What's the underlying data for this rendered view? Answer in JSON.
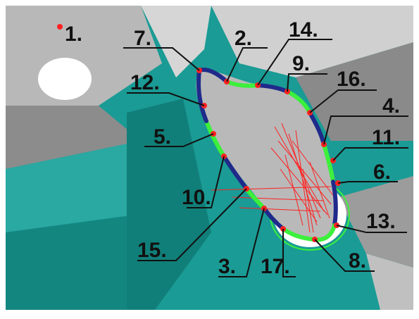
{
  "labels": [
    {
      "id": "1",
      "text": "1."
    },
    {
      "id": "2",
      "text": "2."
    },
    {
      "id": "3",
      "text": "3."
    },
    {
      "id": "4",
      "text": "4."
    },
    {
      "id": "5",
      "text": "5."
    },
    {
      "id": "6",
      "text": "6."
    },
    {
      "id": "7",
      "text": "7."
    },
    {
      "id": "8",
      "text": "8."
    },
    {
      "id": "9",
      "text": "9."
    },
    {
      "id": "10",
      "text": "10."
    },
    {
      "id": "11",
      "text": "11."
    },
    {
      "id": "12",
      "text": "12."
    },
    {
      "id": "13",
      "text": "13."
    },
    {
      "id": "14",
      "text": "14."
    },
    {
      "id": "15",
      "text": "15."
    },
    {
      "id": "16",
      "text": "16."
    },
    {
      "id": "17",
      "text": "17."
    }
  ],
  "colors": {
    "teal": "#1a9b95",
    "dark_teal": "#0f7a74",
    "gray": "#9a9a9a",
    "light_gray": "#c9c9c9",
    "segment_blue": "#1f2a8a",
    "segment_green": "#3cf03c",
    "point_red": "#ff2020",
    "label_text": "#111111"
  }
}
